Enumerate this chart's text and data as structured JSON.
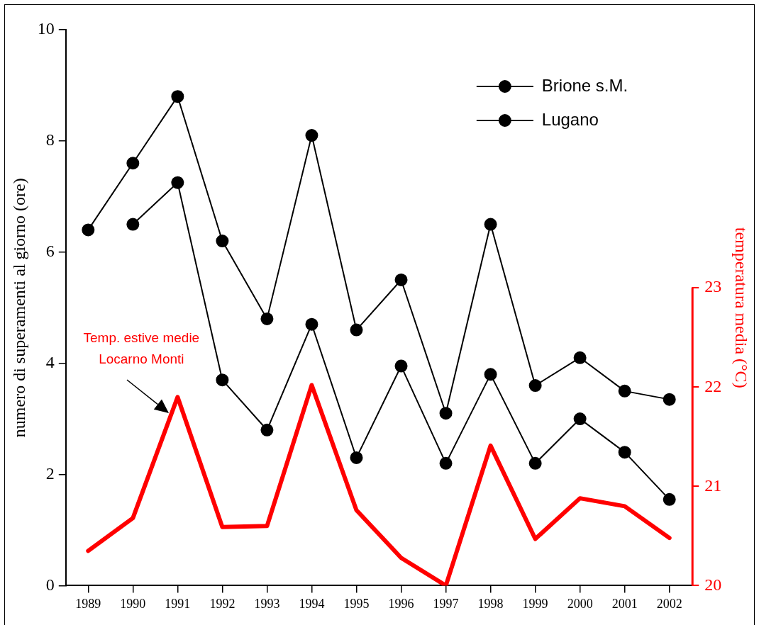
{
  "chart_data": {
    "type": "line",
    "ylabel": "numero di superamenti al giorno (ore)",
    "y2label": "temperatura media (°C)",
    "categories": [
      "1989",
      "1990",
      "1991",
      "1992",
      "1993",
      "1994",
      "1995",
      "1996",
      "1997",
      "1998",
      "1999",
      "2000",
      "2001",
      "2002"
    ],
    "series": [
      {
        "name": "Brione s.M.",
        "color": "#000000",
        "marker": "circle",
        "values": [
          6.4,
          7.6,
          8.8,
          6.2,
          4.8,
          8.1,
          4.6,
          5.5,
          3.1,
          6.5,
          3.6,
          4.1,
          3.5,
          3.35
        ]
      },
      {
        "name": "Lugano",
        "color": "#000000",
        "marker": "circle",
        "values": [
          null,
          6.5,
          7.25,
          3.7,
          2.8,
          4.7,
          2.3,
          3.95,
          2.2,
          3.8,
          2.2,
          3.0,
          2.4,
          1.55
        ]
      },
      {
        "color": "#ff0000",
        "axis": "y2",
        "marker": "none",
        "values": [
          20.35,
          20.68,
          21.9,
          20.59,
          20.6,
          22.02,
          20.76,
          20.28,
          20.0,
          21.41,
          20.47,
          20.88,
          20.8,
          20.48
        ]
      }
    ],
    "ylim": [
      0,
      10
    ],
    "yticks": [
      0,
      2,
      4,
      6,
      8,
      10
    ],
    "y2lim": [
      20,
      25.6
    ],
    "y2ticks": [
      20,
      21,
      22,
      23
    ],
    "grid": false,
    "legend": "top right",
    "annotations": [
      "Temp. estive medie\nLocarno Monti"
    ]
  }
}
